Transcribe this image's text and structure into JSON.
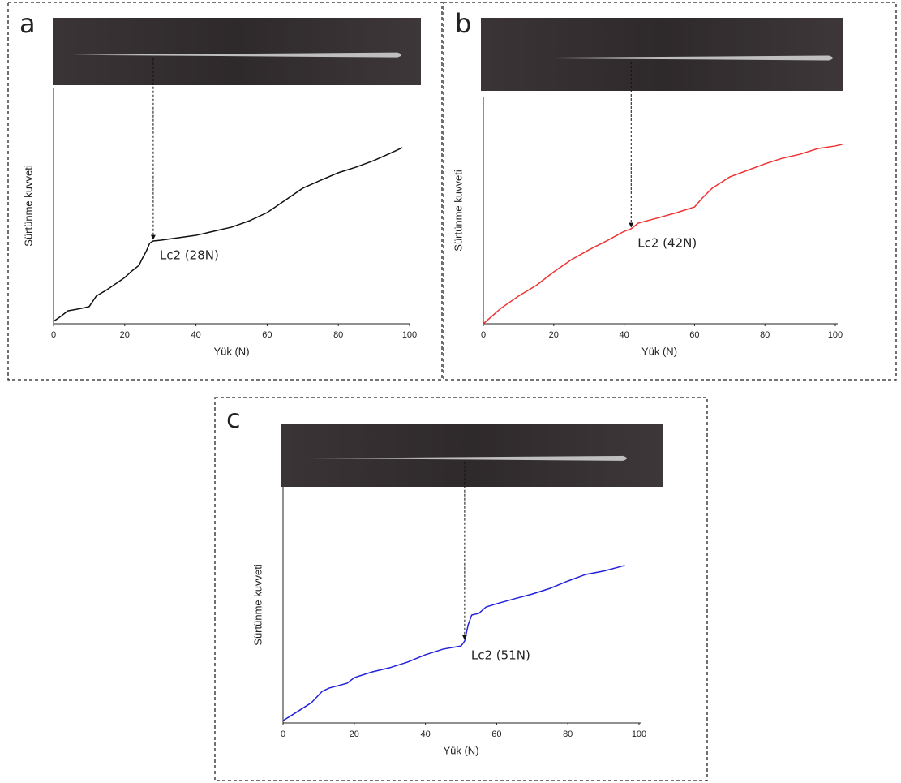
{
  "chart_data": [
    {
      "type": "line",
      "panel_label": "a",
      "xlabel": "Yük (N)",
      "ylabel": "Sürtünme kuvveti",
      "xlim": [
        0,
        100
      ],
      "xticks": [
        0,
        20,
        40,
        60,
        80,
        100
      ],
      "ylim": [
        0,
        100
      ],
      "color": "#111111",
      "x": [
        0,
        2,
        4,
        8,
        10,
        12,
        15,
        18,
        20,
        22,
        24,
        25,
        26,
        27,
        28,
        30,
        40,
        50,
        55,
        60,
        65,
        70,
        75,
        80,
        85,
        90,
        95,
        98
      ],
      "values": [
        1.0,
        3.1,
        5.5,
        6.6,
        7.3,
        11.8,
        14.5,
        17.6,
        19.7,
        22.5,
        24.9,
        28.0,
        30.8,
        34.3,
        35.3,
        35.6,
        37.7,
        41.2,
        43.9,
        47.4,
        52.6,
        57.8,
        61.2,
        64.4,
        66.8,
        69.6,
        73.0,
        75.1
      ],
      "annotation": {
        "text": "Lc2 (28N)",
        "x": 28
      }
    },
    {
      "type": "line",
      "panel_label": "b",
      "xlabel": "Yük (N)",
      "ylabel": "Sürtünme kuvveti",
      "xlim": [
        0,
        100
      ],
      "xticks": [
        0,
        20,
        40,
        60,
        80,
        100
      ],
      "ylim": [
        0,
        100
      ],
      "color": "#ee3333",
      "x": [
        0,
        5,
        10,
        15,
        20,
        25,
        30,
        35,
        40,
        42,
        44,
        50,
        55,
        60,
        62,
        65,
        70,
        75,
        80,
        85,
        90,
        95,
        100,
        102
      ],
      "values": [
        0,
        6.6,
        11.8,
        16.3,
        22.1,
        27.3,
        31.5,
        35.3,
        39.4,
        40.5,
        42.9,
        45.3,
        47.4,
        49.8,
        53.3,
        57.8,
        62.6,
        65.4,
        68.2,
        70.6,
        72.3,
        74.7,
        75.8,
        76.5
      ],
      "annotation": {
        "text": "Lc2 (42N)",
        "x": 42
      }
    },
    {
      "type": "line",
      "panel_label": "c",
      "xlabel": "Yük (N)",
      "ylabel": "Sürtünme kuvveti",
      "xlim": [
        0,
        100
      ],
      "xticks": [
        0,
        20,
        40,
        60,
        80,
        100
      ],
      "ylim": [
        0,
        100
      ],
      "color": "#2222dd",
      "x": [
        0,
        3,
        8,
        11,
        13,
        18,
        20,
        25,
        30,
        35,
        40,
        45,
        50,
        51,
        52,
        53,
        55,
        57,
        60,
        65,
        70,
        75,
        80,
        85,
        90,
        95,
        96
      ],
      "values": [
        1.0,
        3.8,
        8.6,
        13.4,
        14.8,
        16.8,
        19.2,
        21.6,
        23.4,
        25.8,
        28.9,
        31.3,
        32.6,
        34.7,
        41.6,
        45.7,
        46.4,
        49.1,
        50.5,
        52.6,
        54.6,
        57.0,
        60.1,
        62.9,
        64.3,
        66.3,
        66.7
      ],
      "annotation": {
        "text": "Lc2 (51N)",
        "x": 51
      }
    }
  ]
}
